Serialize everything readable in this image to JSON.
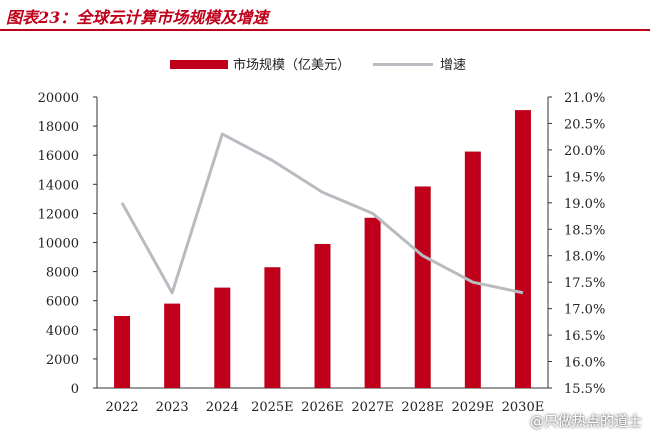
{
  "title": "图表23：全球云计算市场规模及增速",
  "watermark": "@只做热点的道士",
  "colors": {
    "bar": "#c0001a",
    "line": "#b8bcc0",
    "axis": "#333333"
  },
  "chart_data": {
    "type": "bar",
    "categories": [
      "2022",
      "2023",
      "2024",
      "2025E",
      "2026E",
      "2027E",
      "2028E",
      "2029E",
      "2030E"
    ],
    "series": [
      {
        "name": "市场规模（亿美元）",
        "type": "bar",
        "axis": "left",
        "values": [
          4950,
          5800,
          6900,
          8300,
          9900,
          11700,
          13850,
          16250,
          19100
        ]
      },
      {
        "name": "增速",
        "type": "line",
        "axis": "right",
        "values": [
          19.0,
          17.3,
          20.3,
          19.8,
          19.2,
          18.8,
          18.0,
          17.5,
          17.3
        ]
      }
    ],
    "y_left": {
      "lim": [
        0,
        20000
      ],
      "ticks": [
        "0",
        "2000",
        "4000",
        "6000",
        "8000",
        "10000",
        "12000",
        "14000",
        "16000",
        "18000",
        "20000"
      ]
    },
    "y_right": {
      "lim": [
        15.5,
        21.0
      ],
      "ticks": [
        "15.5%",
        "16.0%",
        "16.5%",
        "17.0%",
        "17.5%",
        "18.0%",
        "18.5%",
        "19.0%",
        "19.5%",
        "20.0%",
        "20.5%",
        "21.0%"
      ]
    },
    "legend_position": "top"
  }
}
